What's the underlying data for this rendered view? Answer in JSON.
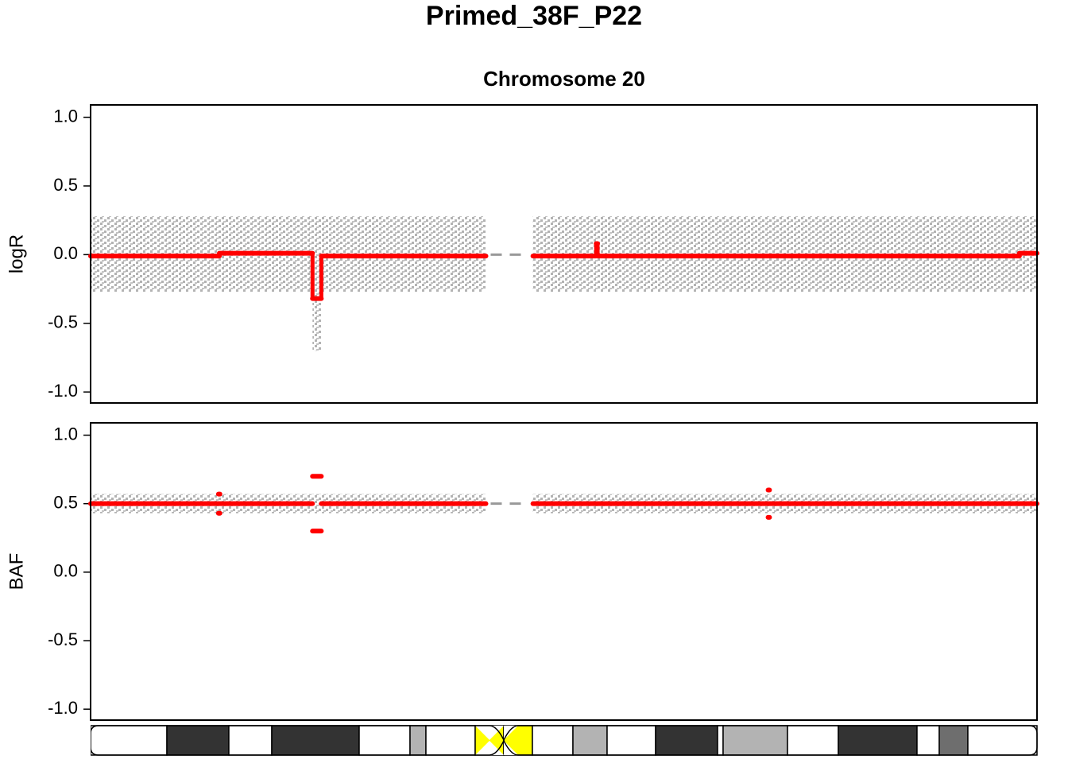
{
  "chart_data": [
    {
      "type": "segment",
      "title": "Primed_38F_P22",
      "subtitle": "Chromosome 20",
      "ylabel": "logR",
      "xlim": [
        0,
        64.4
      ],
      "ylim": [
        -1.08,
        1.09
      ],
      "yticks": [
        {
          "value": 1,
          "label": "1.0"
        },
        {
          "value": 0.5,
          "label": "0.5"
        },
        {
          "value": 0,
          "label": "0.0"
        },
        {
          "value": -0.5,
          "label": "-0.5"
        },
        {
          "value": -1,
          "label": "-1.0"
        }
      ],
      "color": "#ff0000",
      "point_color": "#b3b3b3",
      "point_bands": {
        "start": [
          0,
          15.1,
          30.1
        ],
        "end": [
          26.9,
          15.7,
          64.4
        ],
        "low": [
          -0.27,
          -0.7,
          -0.27
        ],
        "high": [
          0.28,
          -0.1,
          0.28
        ]
      },
      "segments": {
        "start": [
          0,
          8.76,
          15.1,
          15.7,
          30.1,
          34.4,
          34.5,
          63.2
        ],
        "end": [
          8.76,
          15.1,
          15.7,
          26.9,
          34.4,
          34.5,
          63.2,
          64.4
        ],
        "values": [
          -0.01,
          0.01,
          -0.32,
          -0.01,
          -0.01,
          0.08,
          -0.01,
          0.01
        ]
      }
    },
    {
      "type": "segment",
      "ylabel": "BAF",
      "xlim": [
        0,
        64.4
      ],
      "ylim": [
        -1.08,
        1.09
      ],
      "yticks": [
        {
          "value": 1,
          "label": "1.0"
        },
        {
          "value": 0.5,
          "label": "0.5"
        },
        {
          "value": 0,
          "label": "0.0"
        },
        {
          "value": -0.5,
          "label": "-0.5"
        },
        {
          "value": -1,
          "label": "-1.0"
        }
      ],
      "color": "#ff0000",
      "point_color": "#b3b3b3",
      "point_bands": {
        "start": [
          0,
          30.1
        ],
        "end": [
          26.9,
          64.4
        ],
        "low": [
          0.43,
          0.43
        ],
        "high": [
          0.57,
          0.57
        ]
      },
      "segments": {
        "start": [
          0,
          8.7,
          8.7,
          15.1,
          15.1,
          15.7,
          30.1,
          46.1,
          46.1
        ],
        "end": [
          15.1,
          8.8,
          8.8,
          15.7,
          15.7,
          26.9,
          64.4,
          46.2,
          46.2
        ],
        "values": [
          0.5,
          0.57,
          0.43,
          0.7,
          0.3,
          0.5,
          0.5,
          0.6,
          0.4
        ]
      }
    }
  ]
}
